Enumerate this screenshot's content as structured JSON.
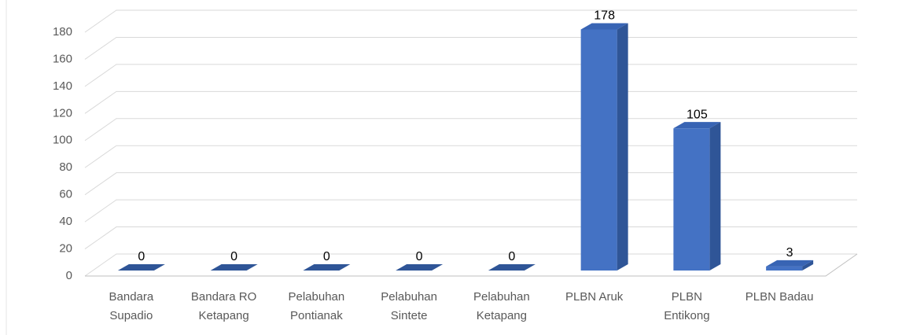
{
  "chart_data": {
    "type": "bar3d",
    "categories": [
      [
        "Bandara",
        "Supadio"
      ],
      [
        "Bandara RO",
        "Ketapang"
      ],
      [
        "Pelabuhan",
        "Pontianak"
      ],
      [
        "Pelabuhan",
        "Sintete"
      ],
      [
        "Pelabuhan",
        "Ketapang"
      ],
      [
        "PLBN Aruk"
      ],
      [
        "PLBN",
        "Entikong"
      ],
      [
        "PLBN Badau"
      ]
    ],
    "values": [
      0,
      0,
      0,
      0,
      0,
      178,
      105,
      3
    ],
    "color": "#4472c4",
    "side_color": "#2f5597",
    "top_color": "#3864b4",
    "ylim": [
      0,
      180
    ],
    "yticks": [
      0,
      20,
      40,
      60,
      80,
      100,
      120,
      140,
      160,
      180
    ],
    "grid": true
  }
}
